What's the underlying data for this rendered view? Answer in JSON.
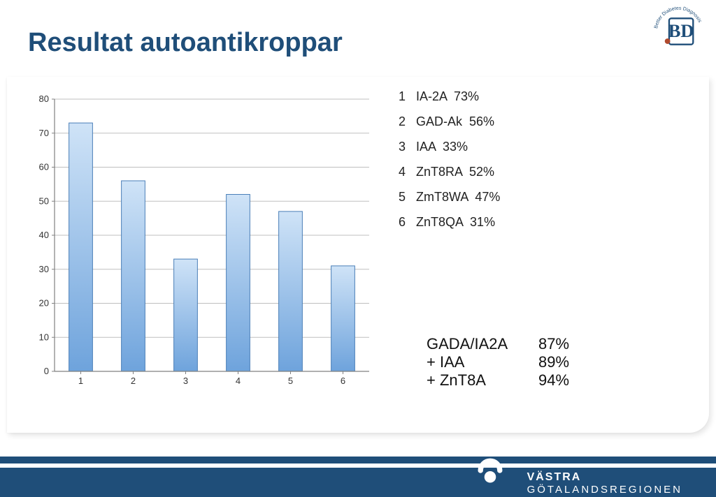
{
  "title": "Resultat autoantikroppar",
  "title_color": "#1f4e79",
  "title_fontsize": 38,
  "logo": {
    "circle_text": "Better Diabetes Diagnosis",
    "circle_color": "#1f4e79",
    "letters": "BD",
    "letter_color": "#1f4e79",
    "dot_color": "#b04a2e"
  },
  "chart": {
    "type": "bar",
    "categories": [
      "1",
      "2",
      "3",
      "4",
      "5",
      "6"
    ],
    "values": [
      73,
      56,
      33,
      52,
      47,
      31
    ],
    "bar_fill_top": "#cfe3f7",
    "bar_fill_bottom": "#6ea3dc",
    "bar_border": "#4a7fb8",
    "bar_width": 0.45,
    "ylim": [
      0,
      80
    ],
    "ytick_step": 10,
    "axis_color": "#808080",
    "grid_color": "#bfbfbf",
    "grid_on": true,
    "tick_label_fontsize": 13,
    "background_color": "#ffffff",
    "plot_border_color": "#808080"
  },
  "legend": {
    "fontsize": 18,
    "color": "#222222",
    "items": [
      {
        "n": "1",
        "label": "IA-2A",
        "pct": "73%"
      },
      {
        "n": "2",
        "label": "GAD-Ak",
        "pct": "56%"
      },
      {
        "n": "3",
        "label": "IAA",
        "pct": "33%"
      },
      {
        "n": "4",
        "label": "ZnT8RA",
        "pct": "52%"
      },
      {
        "n": "5",
        "label": "ZmT8WA",
        "pct": "47%"
      },
      {
        "n": "6",
        "label": "ZnT8QA",
        "pct": "31%"
      }
    ]
  },
  "combinations": {
    "fontsize": 22,
    "color": "#111111",
    "rows": [
      {
        "label": "GADA/IA2A",
        "value": "87%"
      },
      {
        "label": "+ IAA",
        "value": "89%"
      },
      {
        "label": "+ ZnT8A",
        "value": "94%"
      }
    ]
  },
  "footer": {
    "bar_color": "#1f4e79",
    "org_line1": "VÄSTRA",
    "org_line2": "GÖTALANDSREGIONEN",
    "text_color": "#ffffff"
  }
}
